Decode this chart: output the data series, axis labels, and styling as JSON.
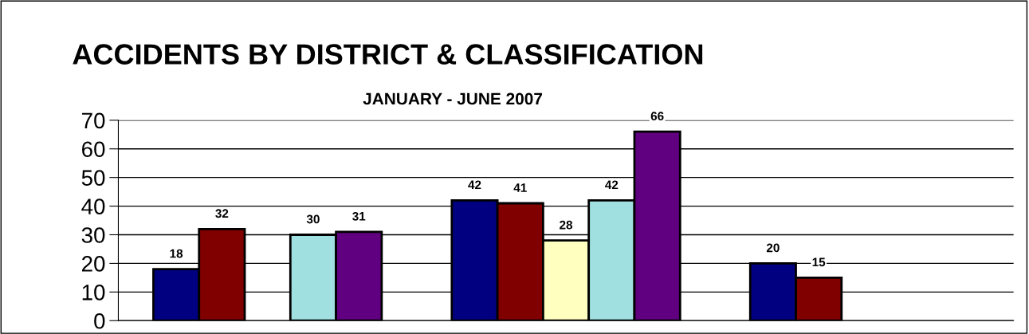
{
  "chart_data": {
    "type": "bar",
    "title": "ACCIDENTS BY DISTRICT & CLASSIFICATION",
    "subtitle": "JANUARY - JUNE 2007",
    "categories": [
      null,
      null,
      null
    ],
    "series": [
      {
        "color": "#000080",
        "values": [
          18,
          42,
          20
        ]
      },
      {
        "color": "#800000",
        "values": [
          32,
          41,
          15
        ]
      },
      {
        "color": "#ffffc0",
        "values": [
          null,
          28,
          null
        ]
      },
      {
        "color": "#a0e0e0",
        "values": [
          30,
          42,
          null
        ]
      },
      {
        "color": "#600080",
        "values": [
          31,
          66,
          null
        ]
      }
    ],
    "ylim": [
      0,
      70
    ],
    "yticks": [
      0,
      10,
      20,
      30,
      40,
      50,
      60,
      70
    ],
    "grid": "y",
    "data_labels": true,
    "tick_labels": "y",
    "legend": false
  }
}
